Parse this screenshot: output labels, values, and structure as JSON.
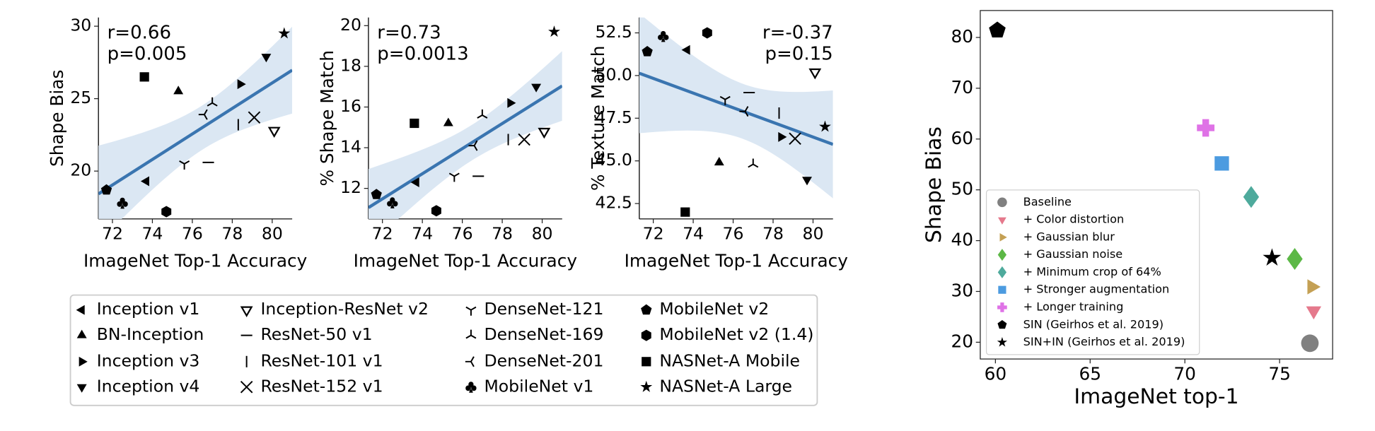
{
  "models": [
    {
      "name": "Inception v1",
      "marker": "triangle-left"
    },
    {
      "name": "BN-Inception",
      "marker": "triangle-up"
    },
    {
      "name": "Inception v3",
      "marker": "triangle-right"
    },
    {
      "name": "Inception v4",
      "marker": "triangle-down"
    },
    {
      "name": "Inception-ResNet v2",
      "marker": "triangle-down-open"
    },
    {
      "name": "ResNet-50 v1",
      "marker": "hline"
    },
    {
      "name": "ResNet-101 v1",
      "marker": "vline"
    },
    {
      "name": "ResNet-152 v1",
      "marker": "x"
    },
    {
      "name": "DenseNet-121",
      "marker": "tri-down"
    },
    {
      "name": "DenseNet-169",
      "marker": "tri-up"
    },
    {
      "name": "DenseNet-201",
      "marker": "tri-left"
    },
    {
      "name": "MobileNet v1",
      "marker": "club"
    },
    {
      "name": "MobileNet v2",
      "marker": "pentagon"
    },
    {
      "name": "MobileNet v2 (1.4)",
      "marker": "hexagon"
    },
    {
      "name": "NASNet-A Mobile",
      "marker": "square"
    },
    {
      "name": "NASNet-A Large",
      "marker": "star"
    }
  ],
  "chart_data": [
    {
      "type": "scatter",
      "x_label": "ImageNet Top-1 Accuracy",
      "y_label": "Shape Bias",
      "annotation": [
        "r=0.66",
        "p=0.005"
      ],
      "annotation_corner": "upper left",
      "x": [
        73.7,
        75.3,
        78.4,
        79.7,
        80.1,
        76.8,
        78.3,
        79.1,
        75.6,
        77.0,
        76.6,
        72.5,
        71.7,
        74.7,
        73.6,
        80.6
      ],
      "values": [
        19.3,
        25.5,
        26.0,
        27.9,
        22.8,
        20.6,
        23.2,
        23.7,
        20.5,
        24.7,
        23.9,
        17.8,
        18.7,
        17.2,
        26.5,
        29.5
      ],
      "color": "#000000",
      "fit": true,
      "fit_color": "#3a75b0",
      "band_color": "#dbe7f3",
      "xlim": [
        71.3,
        81.0
      ],
      "ylim": [
        16.7,
        30.6
      ],
      "xticks": [
        72,
        74,
        76,
        78,
        80
      ],
      "yticks": [
        20,
        25,
        30
      ]
    },
    {
      "type": "scatter",
      "x_label": "ImageNet Top-1 Accuracy",
      "y_label": "% Shape Match",
      "annotation": [
        "r=0.73",
        "p=0.0013"
      ],
      "annotation_corner": "upper left",
      "x": [
        73.7,
        75.3,
        78.4,
        79.7,
        80.1,
        76.8,
        78.3,
        79.1,
        75.6,
        77.0,
        76.6,
        72.5,
        71.7,
        74.7,
        73.6,
        80.6
      ],
      "values": [
        12.3,
        15.2,
        16.2,
        17.0,
        14.8,
        12.6,
        14.4,
        14.4,
        12.6,
        15.6,
        14.1,
        11.3,
        11.7,
        10.9,
        15.2,
        19.7
      ],
      "color": "#000000",
      "fit": true,
      "fit_color": "#3a75b0",
      "band_color": "#dbe7f3",
      "xlim": [
        71.3,
        81.0
      ],
      "ylim": [
        10.5,
        20.4
      ],
      "xticks": [
        72,
        74,
        76,
        78,
        80
      ],
      "yticks": [
        12,
        14,
        16,
        18,
        20
      ]
    },
    {
      "type": "scatter",
      "x_label": "ImageNet Top-1 Accuracy",
      "y_label": "% Texture Match",
      "annotation": [
        "r=-0.37",
        "p=0.15"
      ],
      "annotation_corner": "upper right",
      "x": [
        73.7,
        75.3,
        78.4,
        79.7,
        80.1,
        76.8,
        78.3,
        79.1,
        75.6,
        77.0,
        76.6,
        72.5,
        71.7,
        74.7,
        73.6,
        80.6
      ],
      "values": [
        51.5,
        44.9,
        46.4,
        43.9,
        50.2,
        49.0,
        47.8,
        46.3,
        48.6,
        44.8,
        47.9,
        52.3,
        51.4,
        52.5,
        42.0,
        47.0
      ],
      "color": "#000000",
      "fit": true,
      "fit_color": "#3a75b0",
      "band_color": "#dbe7f3",
      "xlim": [
        71.3,
        81.0
      ],
      "ylim": [
        41.6,
        53.4
      ],
      "xticks": [
        72,
        74,
        76,
        78,
        80
      ],
      "yticks": [
        42.5,
        {
          "value": 45,
          "label": "45.0"
        },
        47.5,
        {
          "value": 50,
          "label": "50.0"
        },
        52.5
      ]
    },
    {
      "type": "scatter",
      "x_label": "ImageNet top-1",
      "y_label": "Shape Bias",
      "frame": true,
      "legend": "lower left",
      "series": [
        {
          "name": "Baseline",
          "color": "#808080",
          "marker": "circle",
          "x": [
            76.6
          ],
          "values": [
            19.8
          ]
        },
        {
          "name": "+ Color distortion",
          "color": "#e5798c",
          "marker": "triangle-down",
          "x": [
            76.8
          ],
          "values": [
            26.2
          ]
        },
        {
          "name": "+ Gaussian blur",
          "color": "#c4a054",
          "marker": "triangle-right",
          "x": [
            76.7
          ],
          "values": [
            30.9
          ]
        },
        {
          "name": "+ Gaussian noise",
          "color": "#5cb846",
          "marker": "diamond",
          "x": [
            75.8
          ],
          "values": [
            36.4
          ]
        },
        {
          "name": "+ Minimum crop of 64%",
          "color": "#4eaa9c",
          "marker": "diamond",
          "x": [
            73.5
          ],
          "values": [
            48.6
          ]
        },
        {
          "name": "+ Stronger augmentation",
          "color": "#4c9be0",
          "marker": "square",
          "x": [
            71.95
          ],
          "values": [
            55.2
          ]
        },
        {
          "name": "+ Longer training",
          "color": "#df72e6",
          "marker": "plus",
          "x": [
            71.1
          ],
          "values": [
            62.2
          ]
        },
        {
          "name": "SIN (Geirhos et al. 2019)",
          "color": "#000000",
          "marker": "pentagon",
          "x": [
            60.1
          ],
          "values": [
            81.4
          ]
        },
        {
          "name": "SIN+IN (Geirhos et al. 2019)",
          "color": "#000000",
          "marker": "star",
          "x": [
            74.6
          ],
          "values": [
            36.6
          ]
        }
      ],
      "xlim": [
        59.2,
        77.8
      ],
      "ylim": [
        16.7,
        85.3
      ],
      "xticks": [
        60,
        65,
        70,
        75
      ],
      "yticks": [
        20,
        30,
        40,
        50,
        60,
        70,
        80
      ]
    }
  ]
}
